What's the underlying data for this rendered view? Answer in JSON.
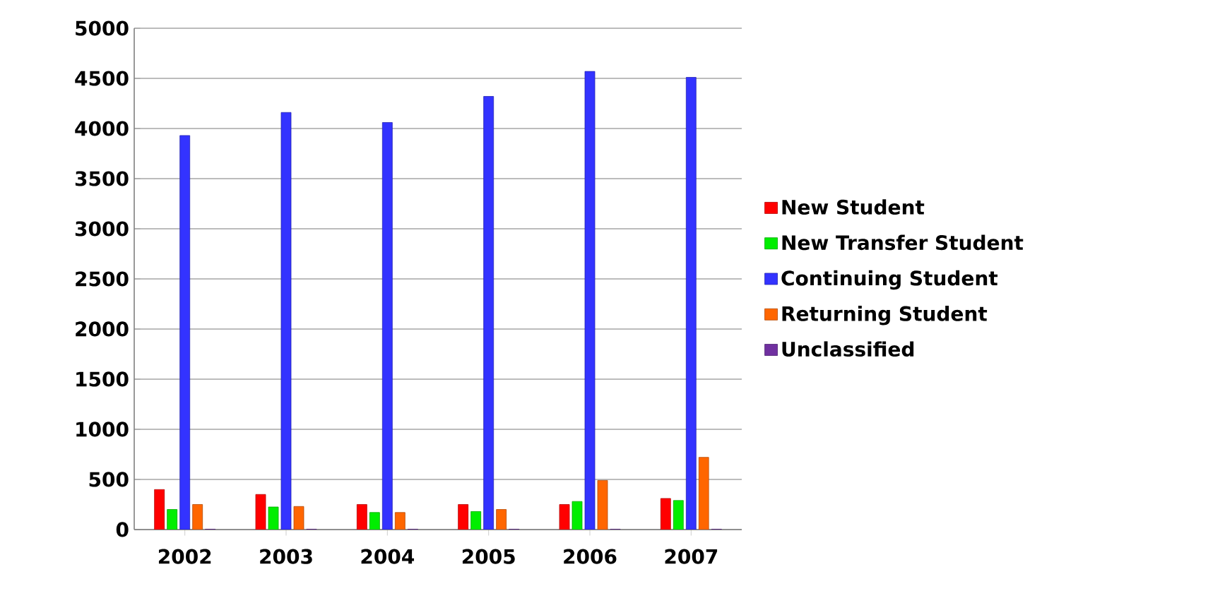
{
  "chart_data": {
    "type": "bar",
    "categories": [
      "2002",
      "2003",
      "2004",
      "2005",
      "2006",
      "2007"
    ],
    "series": [
      {
        "name": "New Student",
        "color": "#ff0000",
        "values": [
          400,
          350,
          250,
          250,
          250,
          310
        ]
      },
      {
        "name": "New Transfer Student",
        "color": "#00ee00",
        "values": [
          200,
          225,
          170,
          180,
          280,
          290
        ]
      },
      {
        "name": "Continuing Student",
        "color": "#3333ff",
        "values": [
          3930,
          4160,
          4060,
          4320,
          4570,
          4510
        ]
      },
      {
        "name": "Returning Student",
        "color": "#ff6600",
        "values": [
          250,
          230,
          170,
          200,
          490,
          720
        ]
      },
      {
        "name": "Unclassified",
        "color": "#7030a0",
        "values": [
          5,
          5,
          5,
          5,
          5,
          5
        ]
      }
    ],
    "ylim": [
      0,
      5000
    ],
    "yticks": [
      0,
      500,
      1000,
      1500,
      2000,
      2500,
      3000,
      3500,
      4000,
      4500,
      5000
    ],
    "grid": "y",
    "legend": "right"
  }
}
